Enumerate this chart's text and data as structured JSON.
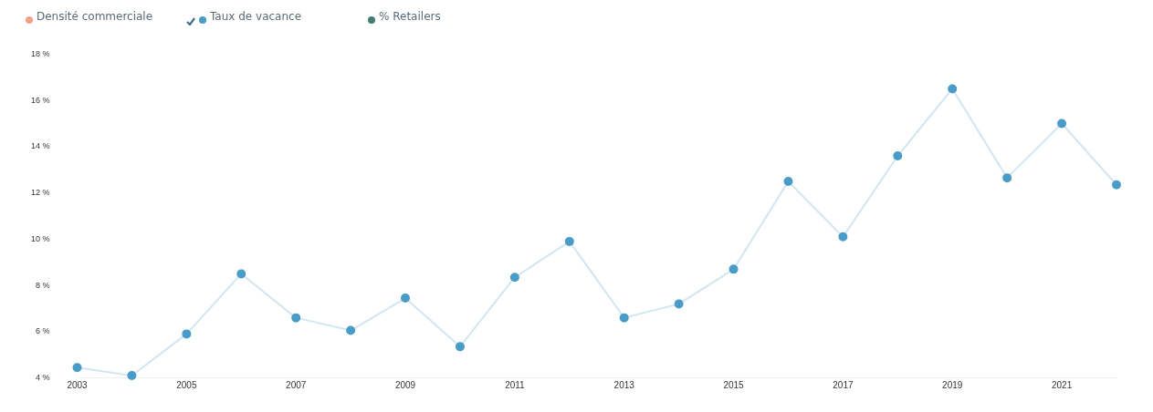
{
  "chart_data": {
    "type": "line",
    "x": [
      2003,
      2004,
      2005,
      2006,
      2007,
      2008,
      2009,
      2010,
      2011,
      2012,
      2013,
      2014,
      2015,
      2016,
      2017,
      2018,
      2019,
      2020,
      2021,
      2022
    ],
    "series": [
      {
        "name": "Densité commerciale",
        "color": "#f0a08a",
        "values": [
          null,
          null,
          null,
          null,
          null,
          null,
          null,
          null,
          null,
          null,
          null,
          null,
          null,
          null,
          null,
          null,
          null,
          null,
          null,
          null
        ]
      },
      {
        "name": "Taux de vacance",
        "color": "#4a9cc8",
        "values": [
          4.45,
          4.1,
          5.9,
          8.5,
          6.6,
          6.05,
          7.45,
          5.35,
          8.35,
          9.9,
          6.6,
          7.2,
          8.7,
          12.5,
          10.1,
          13.6,
          16.5,
          12.65,
          15.0,
          12.35
        ]
      },
      {
        "name": "% Retailers",
        "color": "#3f7f73",
        "values": [
          null,
          null,
          null,
          null,
          null,
          null,
          null,
          null,
          null,
          null,
          null,
          null,
          null,
          null,
          null,
          null,
          null,
          null,
          null,
          null
        ]
      }
    ],
    "xlim": [
      2003,
      2022
    ],
    "xticks": [
      2003,
      2005,
      2007,
      2009,
      2011,
      2013,
      2015,
      2017,
      2019,
      2021
    ],
    "ylim": [
      4,
      18
    ],
    "yticks": [
      {
        "value": 4,
        "label": "4 %"
      },
      {
        "value": 6,
        "label": "6 %"
      },
      {
        "value": 8,
        "label": "8 %"
      },
      {
        "value": 10,
        "label": "10 %"
      },
      {
        "value": 12,
        "label": "12 %"
      },
      {
        "value": 14,
        "label": "14 %"
      },
      {
        "value": 16,
        "label": "16 %"
      },
      {
        "value": 18,
        "label": "18 %"
      }
    ],
    "grid": false,
    "legend": "top left",
    "marker": "circle",
    "line_style": "solid"
  }
}
